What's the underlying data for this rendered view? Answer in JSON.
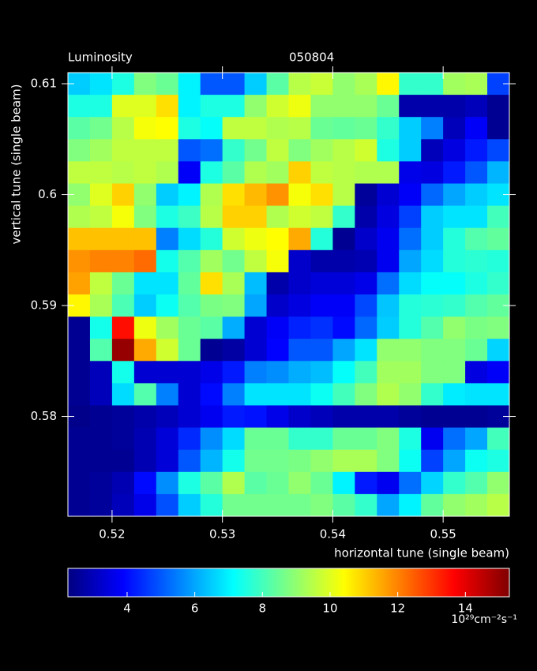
{
  "chart_data": {
    "type": "heatmap",
    "title": "Luminosity",
    "subtitle": "050804",
    "x_label": "horizontal tune (single beam)",
    "y_label": "vertical tune (single beam)",
    "colorbar_label": "10²⁹cm⁻²s⁻¹",
    "colormap": "jet",
    "x": [
      0.517,
      0.519,
      0.521,
      0.523,
      0.525,
      0.527,
      0.529,
      0.531,
      0.533,
      0.535,
      0.537,
      0.539,
      0.541,
      0.543,
      0.545,
      0.547,
      0.549,
      0.551,
      0.553,
      0.555
    ],
    "y": [
      0.61,
      0.608,
      0.606,
      0.604,
      0.602,
      0.6,
      0.598,
      0.596,
      0.594,
      0.592,
      0.59,
      0.588,
      0.586,
      0.584,
      0.582,
      0.58,
      0.578,
      0.576,
      0.574,
      0.572
    ],
    "values": [
      [
        6.5,
        6.8,
        7.5,
        8.8,
        8.5,
        7.0,
        5.0,
        5.0,
        6.5,
        8.3,
        9.5,
        9.7,
        9.0,
        9.3,
        10.5,
        7.8,
        7.8,
        9.2,
        9.3,
        4.7
      ],
      [
        7.5,
        7.5,
        10.0,
        10.0,
        10.8,
        7.0,
        7.5,
        7.5,
        9.0,
        9.8,
        10.2,
        9.0,
        9.0,
        9.0,
        8.5,
        2.8,
        2.8,
        2.8,
        3.0,
        2.5
      ],
      [
        8.3,
        8.6,
        9.5,
        10.3,
        10.4,
        7.5,
        7.2,
        9.6,
        9.6,
        9.4,
        9.5,
        8.5,
        8.4,
        8.5,
        7.8,
        6.5,
        5.5,
        3.0,
        3.8,
        2.5
      ],
      [
        8.8,
        9.2,
        9.6,
        9.6,
        9.6,
        5.0,
        5.3,
        7.8,
        8.6,
        9.6,
        8.8,
        9.2,
        9.5,
        9.8,
        7.5,
        6.5,
        3.0,
        3.5,
        4.2,
        4.8
      ],
      [
        9.6,
        9.6,
        9.5,
        9.6,
        9.4,
        3.8,
        7.5,
        8.3,
        9.4,
        9.2,
        11.0,
        9.6,
        9.5,
        9.4,
        9.4,
        3.6,
        3.5,
        4.2,
        5.0,
        6.2
      ],
      [
        9.0,
        10.0,
        11.0,
        9.0,
        6.5,
        7.0,
        9.4,
        10.8,
        11.3,
        11.8,
        10.3,
        10.8,
        9.5,
        2.6,
        3.3,
        3.8,
        5.2,
        6.0,
        6.5,
        6.8
      ],
      [
        9.4,
        9.6,
        10.3,
        8.8,
        7.5,
        7.9,
        9.5,
        11.0,
        11.0,
        9.4,
        9.8,
        9.6,
        7.8,
        2.8,
        3.5,
        4.7,
        6.5,
        6.8,
        6.8,
        8.0
      ],
      [
        11.2,
        11.2,
        11.2,
        11.2,
        5.5,
        6.7,
        7.6,
        9.8,
        10.2,
        10.4,
        11.5,
        7.6,
        2.5,
        3.2,
        3.7,
        5.3,
        6.5,
        7.6,
        8.2,
        8.4
      ],
      [
        11.8,
        12.0,
        12.0,
        12.3,
        7.4,
        8.2,
        9.2,
        8.6,
        9.6,
        10.3,
        3.2,
        2.8,
        2.8,
        2.9,
        3.7,
        6.0,
        6.7,
        7.6,
        7.7,
        7.6
      ],
      [
        11.6,
        9.6,
        8.5,
        6.8,
        6.8,
        8.4,
        10.8,
        9.3,
        6.3,
        2.8,
        3.2,
        3.4,
        3.4,
        3.6,
        5.3,
        6.7,
        7.2,
        7.2,
        7.5,
        7.8
      ],
      [
        10.5,
        9.3,
        8.1,
        6.5,
        7.3,
        8.2,
        8.7,
        8.8,
        6.0,
        3.2,
        3.5,
        3.8,
        3.8,
        4.8,
        6.4,
        7.6,
        7.7,
        7.8,
        8.2,
        8.4
      ],
      [
        2.5,
        7.4,
        13.5,
        10.2,
        9.2,
        8.5,
        8.3,
        6.1,
        3.3,
        3.8,
        4.3,
        4.5,
        4.0,
        5.2,
        6.5,
        7.6,
        8.2,
        9.0,
        8.7,
        8.8
      ],
      [
        2.5,
        8.2,
        15.0,
        11.5,
        9.8,
        8.5,
        2.5,
        2.7,
        3.3,
        3.9,
        5.0,
        5.0,
        6.0,
        6.8,
        9.0,
        9.0,
        8.8,
        8.8,
        8.5,
        6.6
      ],
      [
        2.5,
        3.0,
        7.4,
        3.3,
        3.3,
        3.3,
        3.6,
        4.2,
        5.5,
        5.7,
        6.1,
        6.3,
        7.2,
        8.0,
        9.2,
        9.2,
        8.8,
        8.8,
        3.5,
        3.8
      ],
      [
        2.5,
        3.0,
        6.7,
        8.2,
        5.5,
        3.3,
        4.0,
        5.5,
        6.8,
        6.8,
        6.8,
        7.3,
        8.0,
        8.8,
        9.4,
        9.0,
        7.8,
        6.9,
        6.8,
        6.8
      ],
      [
        2.4,
        2.5,
        2.6,
        2.8,
        3.0,
        3.3,
        3.7,
        4.2,
        4.1,
        3.6,
        3.2,
        3.0,
        2.8,
        2.8,
        2.8,
        2.6,
        2.5,
        2.5,
        2.5,
        2.6
      ],
      [
        2.5,
        2.5,
        2.6,
        2.9,
        3.4,
        4.4,
        5.7,
        6.7,
        8.5,
        8.5,
        7.8,
        7.8,
        8.5,
        8.5,
        8.8,
        7.5,
        3.7,
        5.3,
        6.0,
        8.0
      ],
      [
        2.5,
        2.5,
        2.5,
        2.9,
        3.4,
        5.0,
        6.2,
        7.4,
        8.6,
        8.6,
        8.7,
        9.0,
        9.3,
        9.3,
        8.8,
        7.3,
        4.7,
        6.0,
        7.3,
        7.5
      ],
      [
        2.5,
        2.6,
        2.9,
        4.0,
        5.7,
        7.5,
        8.3,
        9.4,
        8.3,
        8.5,
        9.0,
        8.5,
        7.0,
        4.2,
        3.7,
        5.3,
        6.6,
        7.8,
        8.2,
        9.0
      ],
      [
        2.5,
        2.6,
        3.0,
        3.6,
        4.9,
        6.5,
        7.6,
        8.6,
        8.6,
        8.6,
        8.6,
        8.8,
        8.3,
        7.8,
        6.0,
        7.0,
        8.4,
        9.0,
        9.2,
        9.5
      ]
    ],
    "xlim": [
      0.516,
      0.556
    ],
    "ylim": [
      0.571,
      0.611
    ],
    "xticks": [
      0.52,
      0.53,
      0.54,
      0.55
    ],
    "yticks": [
      0.58,
      0.59,
      0.6,
      0.61
    ],
    "clim": [
      2.25,
      15.3
    ],
    "cticks": [
      4,
      6,
      8,
      10,
      12,
      14
    ]
  }
}
